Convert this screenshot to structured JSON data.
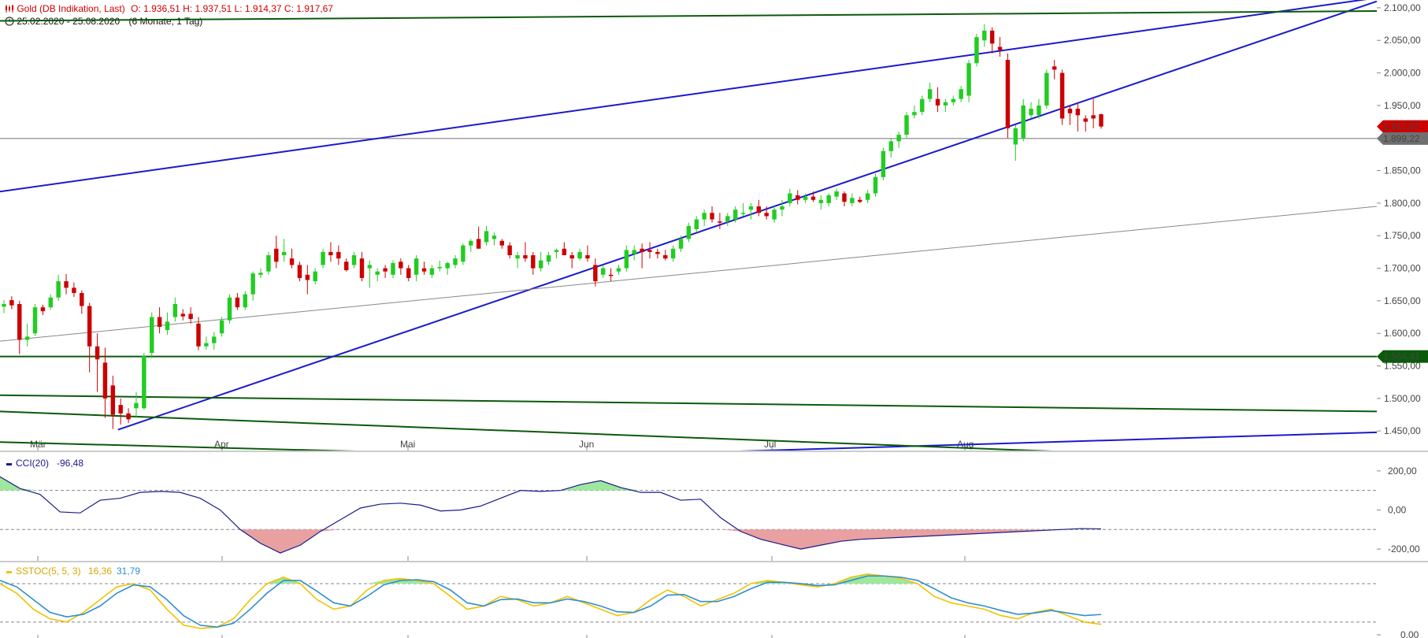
{
  "header": {
    "title": "Gold (DB Indikation, Last)",
    "ohlc": "O: 1.936,51  H: 1.937,51  L: 1.914,37  C: 1.917,67",
    "date_range": "25.02.2020 - 25.08.2020",
    "period": "(6 Monate, 1 Tag)",
    "icons": [
      "chart-type-icon",
      "clock-icon"
    ]
  },
  "colors": {
    "up": "#22cc22",
    "down": "#cc0000",
    "trend_blue": "#1a1acc",
    "trend_green": "#0b5a0b",
    "gray_line": "#888888",
    "cci_line": "#1a1a8c",
    "stoch_k": "#f2c200",
    "stoch_d": "#2e8fd0",
    "fill_green": "#9ee89e",
    "fill_red": "#e8a0a0"
  },
  "chart_data": [
    {
      "type": "candlestick",
      "title": "Gold (DB Indikation, Last)",
      "x_ticks": [
        "Mär",
        "Apr",
        "Mai",
        "Jun",
        "Jul",
        "Aug"
      ],
      "y_ticks": [
        "1.450,00",
        "1.500,00",
        "1.550,00",
        "1.600,00",
        "1.650,00",
        "1.700,00",
        "1.750,00",
        "1.800,00",
        "1.850,00",
        "1.900,00",
        "1.950,00",
        "2.000,00",
        "2.050,00",
        "2.100,00"
      ],
      "ylim": [
        1420,
        2112
      ],
      "price_tags": [
        {
          "label": "1.917,67",
          "value": 1917.67,
          "color": "#cc0000"
        },
        {
          "label": "1.899,22",
          "value": 1899.22,
          "color": "#707070"
        },
        {
          "label": "1.564,41",
          "value": 1564.41,
          "color": "#0b5a0b"
        }
      ],
      "horizontal_lines": [
        {
          "value": 1899.22,
          "color": "#707070"
        },
        {
          "value": 1564.41,
          "color": "#0b5a0b"
        }
      ],
      "candles": [
        [
          1641,
          1651,
          1631,
          1645
        ],
        [
          1651,
          1657,
          1637,
          1643
        ],
        [
          1645,
          1650,
          1568,
          1590
        ],
        [
          1590,
          1615,
          1580,
          1595
        ],
        [
          1600,
          1645,
          1596,
          1640
        ],
        [
          1640,
          1644,
          1628,
          1634
        ],
        [
          1640,
          1660,
          1636,
          1655
        ],
        [
          1655,
          1690,
          1650,
          1680
        ],
        [
          1680,
          1691,
          1660,
          1670
        ],
        [
          1670,
          1678,
          1656,
          1662
        ],
        [
          1662,
          1666,
          1630,
          1642
        ],
        [
          1642,
          1647,
          1540,
          1580
        ],
        [
          1580,
          1600,
          1510,
          1560
        ],
        [
          1555,
          1578,
          1470,
          1500
        ],
        [
          1520,
          1535,
          1453,
          1475
        ],
        [
          1490,
          1500,
          1460,
          1477
        ],
        [
          1477,
          1485,
          1462,
          1468
        ],
        [
          1485,
          1510,
          1470,
          1493
        ],
        [
          1485,
          1570,
          1483,
          1565
        ],
        [
          1570,
          1632,
          1562,
          1625
        ],
        [
          1625,
          1640,
          1600,
          1610
        ],
        [
          1605,
          1632,
          1598,
          1618
        ],
        [
          1625,
          1655,
          1618,
          1645
        ],
        [
          1630,
          1637,
          1620,
          1626
        ],
        [
          1630,
          1640,
          1615,
          1622
        ],
        [
          1615,
          1625,
          1574,
          1580
        ],
        [
          1580,
          1595,
          1575,
          1585
        ],
        [
          1585,
          1602,
          1575,
          1595
        ],
        [
          1600,
          1625,
          1595,
          1620
        ],
        [
          1620,
          1660,
          1615,
          1655
        ],
        [
          1655,
          1662,
          1636,
          1640
        ],
        [
          1640,
          1665,
          1636,
          1660
        ],
        [
          1660,
          1695,
          1650,
          1692
        ],
        [
          1690,
          1700,
          1685,
          1693
        ],
        [
          1695,
          1725,
          1690,
          1720
        ],
        [
          1730,
          1750,
          1700,
          1710
        ],
        [
          1720,
          1745,
          1710,
          1725
        ],
        [
          1715,
          1730,
          1700,
          1705
        ],
        [
          1705,
          1710,
          1680,
          1685
        ],
        [
          1690,
          1705,
          1660,
          1682
        ],
        [
          1680,
          1700,
          1675,
          1695
        ],
        [
          1705,
          1730,
          1700,
          1725
        ],
        [
          1725,
          1740,
          1710,
          1720
        ],
        [
          1725,
          1735,
          1705,
          1715
        ],
        [
          1710,
          1715,
          1695,
          1697
        ],
        [
          1705,
          1725,
          1700,
          1720
        ],
        [
          1715,
          1725,
          1680,
          1685
        ],
        [
          1700,
          1712,
          1670,
          1705
        ],
        [
          1690,
          1700,
          1680,
          1695
        ],
        [
          1700,
          1705,
          1685,
          1695
        ],
        [
          1690,
          1712,
          1685,
          1708
        ],
        [
          1710,
          1715,
          1690,
          1700
        ],
        [
          1700,
          1705,
          1680,
          1685
        ],
        [
          1690,
          1720,
          1680,
          1715
        ],
        [
          1700,
          1710,
          1690,
          1695
        ],
        [
          1690,
          1705,
          1685,
          1700
        ],
        [
          1700,
          1712,
          1695,
          1702
        ],
        [
          1700,
          1710,
          1690,
          1708
        ],
        [
          1705,
          1720,
          1700,
          1715
        ],
        [
          1710,
          1738,
          1705,
          1735
        ],
        [
          1735,
          1745,
          1725,
          1742
        ],
        [
          1745,
          1764,
          1735,
          1730
        ],
        [
          1740,
          1765,
          1735,
          1757
        ],
        [
          1745,
          1755,
          1735,
          1750
        ],
        [
          1742,
          1745,
          1730,
          1735
        ],
        [
          1735,
          1740,
          1715,
          1720
        ],
        [
          1715,
          1725,
          1700,
          1720
        ],
        [
          1720,
          1740,
          1710,
          1715
        ],
        [
          1720,
          1725,
          1690,
          1700
        ],
        [
          1700,
          1725,
          1695,
          1712
        ],
        [
          1710,
          1725,
          1705,
          1720
        ],
        [
          1725,
          1730,
          1715,
          1728
        ],
        [
          1730,
          1740,
          1725,
          1720
        ],
        [
          1720,
          1725,
          1700,
          1715
        ],
        [
          1715,
          1730,
          1712,
          1725
        ],
        [
          1720,
          1735,
          1710,
          1715
        ],
        [
          1705,
          1715,
          1672,
          1680
        ],
        [
          1690,
          1705,
          1685,
          1700
        ],
        [
          1690,
          1700,
          1680,
          1688
        ],
        [
          1695,
          1705,
          1690,
          1700
        ],
        [
          1700,
          1735,
          1695,
          1728
        ],
        [
          1722,
          1735,
          1712,
          1728
        ],
        [
          1730,
          1738,
          1700,
          1725
        ],
        [
          1728,
          1740,
          1715,
          1725
        ],
        [
          1725,
          1730,
          1715,
          1722
        ],
        [
          1720,
          1728,
          1712,
          1715
        ],
        [
          1715,
          1735,
          1710,
          1730
        ],
        [
          1730,
          1750,
          1725,
          1745
        ],
        [
          1745,
          1770,
          1740,
          1765
        ],
        [
          1760,
          1780,
          1755,
          1775
        ],
        [
          1775,
          1790,
          1765,
          1785
        ],
        [
          1785,
          1795,
          1770,
          1775
        ],
        [
          1772,
          1785,
          1760,
          1770
        ],
        [
          1772,
          1785,
          1765,
          1780
        ],
        [
          1775,
          1795,
          1770,
          1790
        ],
        [
          1785,
          1800,
          1780,
          1785
        ],
        [
          1790,
          1800,
          1775,
          1795
        ],
        [
          1795,
          1805,
          1780,
          1785
        ],
        [
          1785,
          1795,
          1775,
          1780
        ],
        [
          1775,
          1795,
          1770,
          1790
        ],
        [
          1790,
          1805,
          1780,
          1795
        ],
        [
          1800,
          1822,
          1795,
          1815
        ],
        [
          1812,
          1820,
          1798,
          1805
        ],
        [
          1805,
          1815,
          1800,
          1810
        ],
        [
          1810,
          1818,
          1802,
          1805
        ],
        [
          1800,
          1812,
          1790,
          1805
        ],
        [
          1800,
          1815,
          1795,
          1812
        ],
        [
          1810,
          1822,
          1805,
          1818
        ],
        [
          1815,
          1818,
          1795,
          1802
        ],
        [
          1800,
          1815,
          1795,
          1808
        ],
        [
          1805,
          1810,
          1800,
          1802
        ],
        [
          1805,
          1820,
          1800,
          1815
        ],
        [
          1815,
          1845,
          1810,
          1840
        ],
        [
          1840,
          1885,
          1835,
          1880
        ],
        [
          1880,
          1900,
          1870,
          1895
        ],
        [
          1895,
          1910,
          1885,
          1905
        ],
        [
          1905,
          1940,
          1900,
          1935
        ],
        [
          1935,
          1950,
          1930,
          1940
        ],
        [
          1940,
          1965,
          1935,
          1960
        ],
        [
          1960,
          1985,
          1955,
          1975
        ],
        [
          1960,
          1978,
          1940,
          1950
        ],
        [
          1950,
          1960,
          1940,
          1955
        ],
        [
          1955,
          1965,
          1950,
          1960
        ],
        [
          1960,
          1980,
          1955,
          1975
        ],
        [
          1965,
          2020,
          1955,
          2015
        ],
        [
          2015,
          2060,
          2010,
          2055
        ],
        [
          2050,
          2075,
          2040,
          2065
        ],
        [
          2065,
          2070,
          2030,
          2045
        ],
        [
          2040,
          2055,
          2025,
          2035
        ],
        [
          2020,
          2030,
          1900,
          1915
        ],
        [
          1890,
          1920,
          1865,
          1915
        ],
        [
          1900,
          1960,
          1895,
          1950
        ],
        [
          1935,
          1955,
          1930,
          1945
        ],
        [
          1935,
          1960,
          1930,
          1950
        ],
        [
          1950,
          2005,
          1945,
          2000
        ],
        [
          2010,
          2020,
          1990,
          2005
        ],
        [
          2000,
          2005,
          1920,
          1930
        ],
        [
          1945,
          1950,
          1920,
          1938
        ],
        [
          1945,
          1955,
          1910,
          1935
        ],
        [
          1930,
          1935,
          1910,
          1925
        ],
        [
          1935,
          1960,
          1915,
          1930
        ],
        [
          1936.51,
          1937.51,
          1914.37,
          1917.67
        ]
      ],
      "trend_lines": [
        {
          "x1": -1,
          "y1": 1520,
          "x2": 1.15,
          "y2": 2160,
          "color": "#1a1acc"
        },
        {
          "x1": 0.0857,
          "y1": 1452,
          "x2": 1.0,
          "y2": 2110,
          "color": "#1a1acc"
        },
        {
          "x1": 0.27,
          "y1": 1402,
          "x2": 1.0,
          "y2": 1448,
          "color": "#1a1acc"
        },
        {
          "x1": 0,
          "y1": 2080,
          "x2": 1.0,
          "y2": 2095,
          "color": "#0b5a0b"
        },
        {
          "x1": 0,
          "y1": 1505,
          "x2": 1.0,
          "y2": 1480,
          "color": "#0b5a0b"
        },
        {
          "x1": 0,
          "y1": 1480,
          "x2": 1.0,
          "y2": 1400,
          "color": "#0b5a0b"
        },
        {
          "x1": 0,
          "y1": 1433,
          "x2": 0.6,
          "y2": 1400,
          "color": "#0b5a0b"
        },
        {
          "x1": 0,
          "y1": 1588,
          "x2": 1.0,
          "y2": 1795,
          "color": "#888888"
        }
      ]
    },
    {
      "type": "line",
      "title": "CCI(20)",
      "label": "CCI(20)",
      "value_label": "-96,48",
      "y_ticks": [
        "200,00",
        "0,00",
        "-200,00"
      ],
      "ylim": [
        -260,
        280
      ],
      "reference_lines": [
        100,
        -100
      ],
      "values": [
        170,
        110,
        80,
        -10,
        -15,
        50,
        60,
        90,
        95,
        90,
        60,
        0,
        -100,
        -170,
        -220,
        -180,
        -110,
        -50,
        10,
        30,
        35,
        25,
        -5,
        0,
        20,
        60,
        100,
        95,
        100,
        130,
        150,
        115,
        90,
        90,
        50,
        55,
        -40,
        -110,
        -150,
        -175,
        -200,
        -180,
        -160,
        -150,
        -145,
        -140,
        -135,
        -130,
        -125,
        -120,
        -115,
        -110,
        -105,
        -100,
        -95,
        -96.48
      ]
    },
    {
      "type": "line",
      "title": "SSTOC(5, 5, 3)",
      "label": "SSTOC(5, 5, 3)",
      "k_label": "16,36",
      "d_label": "31,79",
      "y_ticks": [
        "0,00"
      ],
      "ylim": [
        -5,
        112
      ],
      "reference_lines": [
        80,
        20
      ],
      "series": [
        {
          "name": "16,36",
          "values": [
            80,
            65,
            40,
            25,
            20,
            35,
            55,
            75,
            80,
            70,
            40,
            15,
            10,
            12,
            25,
            55,
            80,
            90,
            80,
            55,
            40,
            45,
            70,
            85,
            88,
            85,
            80,
            60,
            40,
            45,
            60,
            55,
            45,
            50,
            60,
            50,
            40,
            30,
            35,
            55,
            70,
            60,
            45,
            55,
            65,
            80,
            85,
            82,
            78,
            75,
            80,
            90,
            95,
            92,
            88,
            80,
            60,
            50,
            45,
            40,
            30,
            25,
            35,
            40,
            30,
            20,
            16.36
          ]
        },
        {
          "name": "31,79",
          "values": [
            85,
            75,
            55,
            35,
            28,
            32,
            45,
            65,
            78,
            75,
            55,
            30,
            15,
            12,
            18,
            40,
            65,
            85,
            85,
            68,
            50,
            45,
            60,
            78,
            85,
            86,
            83,
            70,
            50,
            45,
            55,
            56,
            50,
            50,
            56,
            52,
            45,
            36,
            35,
            45,
            62,
            63,
            52,
            52,
            60,
            72,
            82,
            82,
            80,
            77,
            78,
            85,
            92,
            92,
            90,
            85,
            72,
            58,
            50,
            45,
            38,
            32,
            34,
            38,
            34,
            30,
            31.79
          ]
        }
      ]
    }
  ]
}
